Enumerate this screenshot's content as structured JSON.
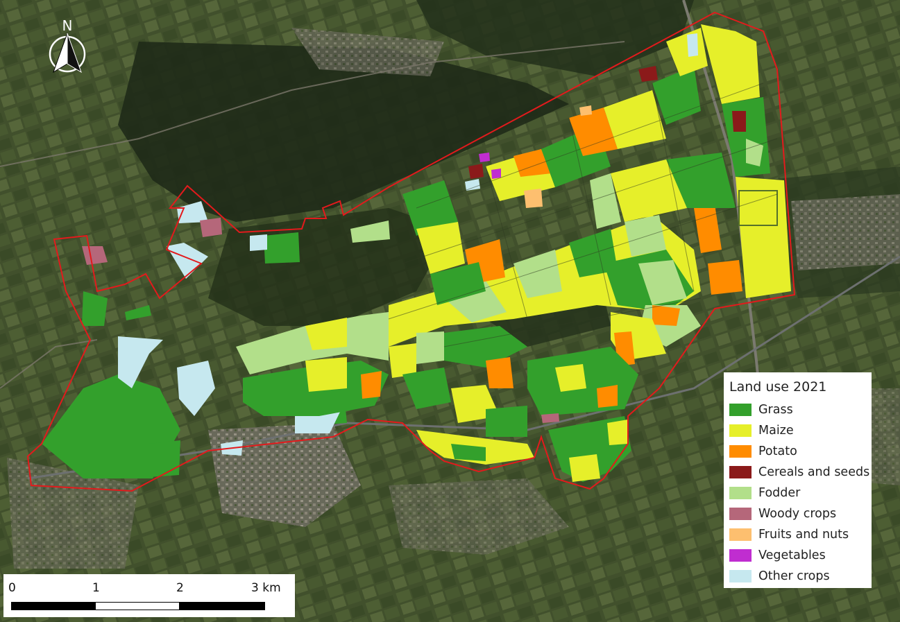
{
  "north_arrow": {
    "label": "N"
  },
  "legend": {
    "title": "Land use 2021",
    "items": [
      {
        "label": "Grass",
        "color": "#33a02c"
      },
      {
        "label": "Maize",
        "color": "#e6ef2a"
      },
      {
        "label": "Potato",
        "color": "#ff8c00"
      },
      {
        "label": "Cereals and seeds",
        "color": "#8b1a1a"
      },
      {
        "label": "Fodder",
        "color": "#b2df8a"
      },
      {
        "label": "Woody crops",
        "color": "#b5677a"
      },
      {
        "label": "Fruits and nuts",
        "color": "#fdbf6f"
      },
      {
        "label": "Vegetables",
        "color": "#c02dd0"
      },
      {
        "label": "Other crops",
        "color": "#c6e8ef"
      }
    ]
  },
  "scale_bar": {
    "labels": [
      "0",
      "1",
      "2",
      "3 km"
    ]
  },
  "boundary_color": "#e31a1c"
}
